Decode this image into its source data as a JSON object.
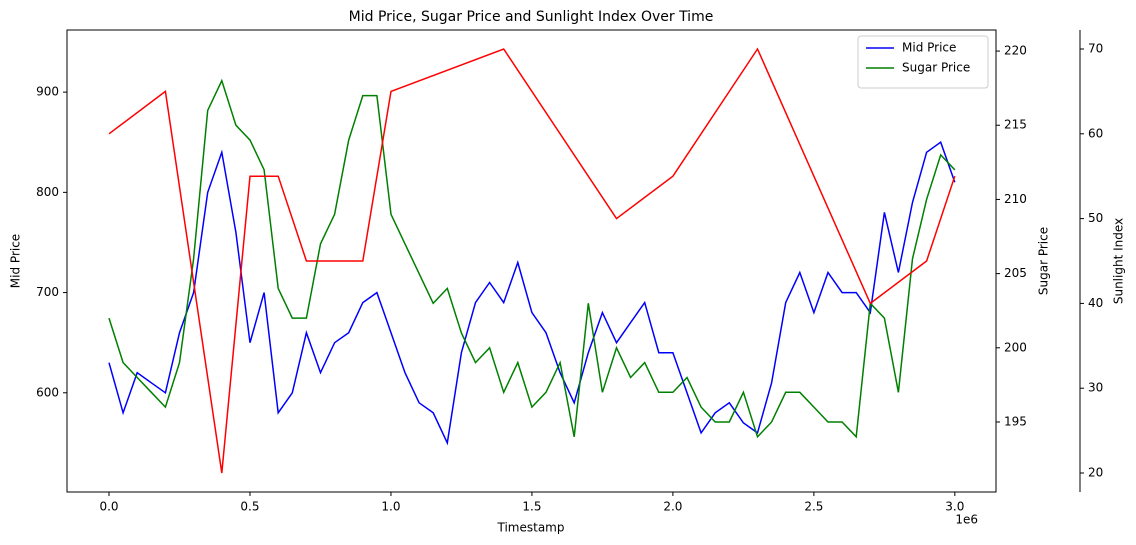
{
  "chart_data": {
    "type": "line",
    "title": "Mid Price, Sugar Price and Sunlight Index Over Time",
    "x_label": "Timestamp",
    "x_offset_label": "1e6",
    "y_label": "Mid Price",
    "y2_label": "Sugar Price",
    "y3_label": "Sunlight Index",
    "y_color": "#0000ff",
    "y2_color": "#008000",
    "y3_color": "#ff0000",
    "xlim": [
      -149000,
      3146000
    ],
    "xticks": [
      {
        "value": 0,
        "label": "0.0"
      },
      {
        "value": 500000,
        "label": "0.5"
      },
      {
        "value": 1000000,
        "label": "1.0"
      },
      {
        "value": 1500000,
        "label": "1.5"
      },
      {
        "value": 2000000,
        "label": "2.0"
      },
      {
        "value": 2500000,
        "label": "2.5"
      },
      {
        "value": 3000000,
        "label": "3.0"
      }
    ],
    "ylim": [
      501,
      962
    ],
    "yticks": [
      600,
      700,
      800,
      900
    ],
    "y2lim": [
      190.28,
      221.42
    ],
    "y2ticks": [
      195,
      200,
      205,
      210,
      215,
      220
    ],
    "y3lim": [
      17.76,
      72.24
    ],
    "y3ticks": [
      20,
      30,
      40,
      50,
      60,
      70
    ],
    "legend": "upper right",
    "x": [
      0,
      50000,
      100000,
      150000,
      200000,
      250000,
      300000,
      350000,
      400000,
      450000,
      500000,
      550000,
      600000,
      650000,
      700000,
      750000,
      800000,
      850000,
      900000,
      950000,
      1000000,
      1050000,
      1100000,
      1150000,
      1200000,
      1250000,
      1300000,
      1350000,
      1400000,
      1450000,
      1500000,
      1550000,
      1600000,
      1650000,
      1700000,
      1750000,
      1800000,
      1850000,
      1900000,
      1950000,
      2000000,
      2050000,
      2100000,
      2150000,
      2200000,
      2250000,
      2300000,
      2350000,
      2400000,
      2450000,
      2500000,
      2550000,
      2600000,
      2650000,
      2700000,
      2750000,
      2800000,
      2850000,
      2900000,
      2950000,
      3000000
    ],
    "series": [
      {
        "name": "Mid Price",
        "color": "#0000ff",
        "axis": "y",
        "in_legend": true,
        "values": [
          630,
          580,
          620,
          610,
          600,
          660,
          700,
          800,
          840,
          760,
          650,
          700,
          580,
          600,
          660,
          620,
          650,
          660,
          690,
          700,
          660,
          620,
          590,
          580,
          550,
          640,
          690,
          710,
          690,
          730,
          680,
          660,
          620,
          590,
          640,
          680,
          650,
          670,
          690,
          640,
          640,
          600,
          560,
          580,
          590,
          570,
          560,
          610,
          690,
          720,
          680,
          720,
          700,
          700,
          680,
          780,
          720,
          790,
          840,
          850,
          810
        ]
      },
      {
        "name": "Sugar Price",
        "color": "#008000",
        "axis": "y2",
        "in_legend": true,
        "values": [
          202,
          199,
          198,
          197,
          196,
          199,
          206,
          216,
          218,
          215,
          214,
          212,
          204,
          202,
          202,
          207,
          209,
          214,
          217,
          217,
          209,
          207,
          205,
          203,
          204,
          201,
          199,
          200,
          197,
          199,
          196,
          197,
          199,
          194,
          203,
          197,
          200,
          198,
          199,
          197,
          197,
          198,
          196,
          195,
          195,
          197,
          194,
          195,
          197,
          197,
          196,
          195,
          195,
          194,
          203,
          202,
          197,
          206,
          210,
          213,
          212
        ]
      },
      {
        "name": "Sunlight Index",
        "color": "#ff0000",
        "axis": "y3",
        "in_legend": false,
        "x": [
          0,
          200000,
          400000,
          500000,
          600000,
          700000,
          900000,
          1000000,
          1400000,
          1800000,
          2000000,
          2300000,
          2700000,
          2900000,
          3000000
        ],
        "values": [
          60,
          65,
          20,
          55,
          55,
          45,
          45,
          65,
          70,
          50,
          55,
          70,
          40,
          45,
          55
        ]
      }
    ]
  }
}
